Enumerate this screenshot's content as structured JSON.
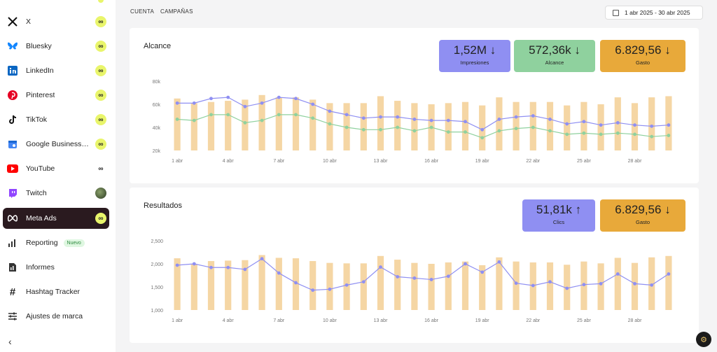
{
  "sidebar": {
    "items": [
      {
        "name": "x",
        "label": "X",
        "icon": "x-icon",
        "badge": "∞"
      },
      {
        "name": "bluesky",
        "label": "Bluesky",
        "icon": "bluesky-icon",
        "badge": "∞"
      },
      {
        "name": "linkedin",
        "label": "LinkedIn",
        "icon": "linkedin-icon",
        "badge": "∞"
      },
      {
        "name": "pinterest",
        "label": "Pinterest",
        "icon": "pinterest-icon",
        "badge": "∞"
      },
      {
        "name": "tiktok",
        "label": "TikTok",
        "icon": "tiktok-icon",
        "badge": "∞"
      },
      {
        "name": "google-business",
        "label": "Google Business ...",
        "icon": "google-business-icon",
        "badge": "∞"
      },
      {
        "name": "youtube",
        "label": "YouTube",
        "icon": "youtube-icon",
        "badge": "∞"
      },
      {
        "name": "twitch",
        "label": "Twitch",
        "icon": "twitch-icon",
        "badge": ""
      },
      {
        "name": "meta-ads",
        "label": "Meta Ads",
        "icon": "meta-icon",
        "badge": "∞"
      },
      {
        "name": "reporting",
        "label": "Reporting",
        "icon": "bar-chart-icon",
        "badge_text": "Nuevo"
      },
      {
        "name": "informes",
        "label": "Informes",
        "icon": "document-icon"
      },
      {
        "name": "hashtag-tracker",
        "label": "Hashtag Tracker",
        "icon": "hashtag-icon"
      },
      {
        "name": "ajustes-marca",
        "label": "Ajustes de marca",
        "icon": "sliders-icon"
      }
    ],
    "collapse_icon": "chevron-left-icon"
  },
  "header": {
    "tabs": [
      "CUENTA",
      "CAMPAÑAS"
    ],
    "date_range": "1 abr 2025 - 30 abr 2025"
  },
  "colors": {
    "impresiones": "#8f8ff2",
    "alcance": "#8fd19e",
    "gasto": "#e8a93a",
    "bars": "#f5d6a4",
    "active_bg": "#2a1a1f",
    "badge": "#e9f56b"
  },
  "alcance_card": {
    "title": "Alcance",
    "kpis": [
      {
        "value": "1,52M",
        "trend": "↓",
        "label": "Impresiones"
      },
      {
        "value": "572,36k",
        "trend": "↓",
        "label": "Alcance"
      },
      {
        "value": "6.829,56",
        "trend": "↓",
        "label": "Gasto"
      }
    ]
  },
  "resultados_card": {
    "title": "Resultados",
    "kpis": [
      {
        "value": "51,81k",
        "trend": "↑",
        "label": "Clics"
      },
      {
        "value": "6.829,56",
        "trend": "↓",
        "label": "Gasto"
      }
    ]
  },
  "chart_data": [
    {
      "type": "bar+line",
      "title": "Alcance",
      "x_tick_labels": [
        "1 abr",
        "4 abr",
        "7 abr",
        "10 abr",
        "13 abr",
        "16 abr",
        "19 abr",
        "22 abr",
        "25 abr",
        "28 abr"
      ],
      "y_tick_labels": [
        "20k",
        "40k",
        "60k",
        "80k"
      ],
      "ylim": [
        20000,
        80000
      ],
      "series": [
        {
          "kind": "bar",
          "values": [
            65000,
            61000,
            62000,
            63000,
            64000,
            68000,
            66000,
            66000,
            64000,
            61000,
            61000,
            61000,
            67000,
            63000,
            61000,
            60000,
            61000,
            62000,
            59000,
            66000,
            62000,
            62000,
            62000,
            59000,
            62000,
            60000,
            66000,
            61000,
            66000,
            67000
          ]
        },
        {
          "kind": "line",
          "values": [
            61000,
            61000,
            65000,
            66000,
            58000,
            61000,
            66000,
            65000,
            60000,
            54000,
            51000,
            48000,
            49000,
            49000,
            47000,
            46000,
            46000,
            45000,
            38000,
            47000,
            49000,
            50000,
            47000,
            43000,
            45000,
            42000,
            44000,
            42000,
            41000,
            42000
          ]
        },
        {
          "kind": "line",
          "values": [
            47000,
            46000,
            51000,
            51000,
            44000,
            46000,
            51000,
            51000,
            48000,
            43000,
            40000,
            38000,
            38000,
            40000,
            37000,
            40000,
            36000,
            36000,
            31000,
            37000,
            39000,
            40000,
            37000,
            34000,
            35000,
            34000,
            35000,
            34000,
            32000,
            33000
          ]
        }
      ]
    },
    {
      "type": "bar+line",
      "title": "Resultados",
      "x_tick_labels": [
        "1 abr",
        "4 abr",
        "7 abr",
        "10 abr",
        "13 abr",
        "16 abr",
        "19 abr",
        "22 abr",
        "25 abr",
        "28 abr"
      ],
      "y_tick_labels": [
        "1,000",
        "1,500",
        "2,000",
        "2,500"
      ],
      "ylim": [
        1000,
        2500
      ],
      "series": [
        {
          "kind": "bar",
          "values": [
            2120,
            2000,
            2060,
            2070,
            2080,
            2190,
            2130,
            2120,
            2060,
            2020,
            2010,
            2010,
            2170,
            2090,
            2020,
            2000,
            2030,
            2050,
            1970,
            2140,
            2050,
            2030,
            2030,
            1980,
            2050,
            2010,
            2130,
            2020,
            2140,
            2170
          ]
        },
        {
          "kind": "line",
          "values": [
            1970,
            2000,
            1920,
            1920,
            1880,
            2110,
            1800,
            1590,
            1430,
            1450,
            1540,
            1610,
            1930,
            1720,
            1690,
            1660,
            1730,
            2000,
            1820,
            2040,
            1580,
            1530,
            1610,
            1470,
            1550,
            1570,
            1780,
            1570,
            1540,
            1780
          ]
        }
      ]
    }
  ]
}
